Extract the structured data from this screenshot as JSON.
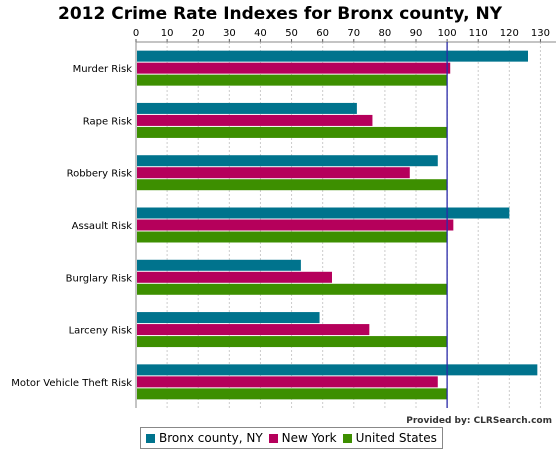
{
  "chart_data": {
    "type": "bar",
    "orientation": "horizontal",
    "title": "2012 Crime Rate Indexes for Bronx county, NY",
    "categories": [
      "Murder Risk",
      "Rape Risk",
      "Robbery Risk",
      "Assault Risk",
      "Burglary Risk",
      "Larceny Risk",
      "Motor Vehicle Theft Risk"
    ],
    "series": [
      {
        "name": "Bronx county, NY",
        "color": "#00738d",
        "values": [
          126,
          71,
          97,
          120,
          53,
          59,
          129
        ]
      },
      {
        "name": "New York",
        "color": "#b5005b",
        "values": [
          101,
          76,
          88,
          102,
          63,
          75,
          97
        ]
      },
      {
        "name": "United States",
        "color": "#3d8f00",
        "values": [
          100,
          100,
          100,
          100,
          100,
          100,
          100
        ]
      }
    ],
    "xlim": [
      0,
      135
    ],
    "xticks": [
      0,
      10,
      20,
      30,
      40,
      50,
      60,
      70,
      80,
      90,
      100,
      110,
      120,
      130
    ],
    "reference_line": 100,
    "grid": true,
    "legend_position": "bottom"
  },
  "credit": "Provided by: CLRSearch.com"
}
